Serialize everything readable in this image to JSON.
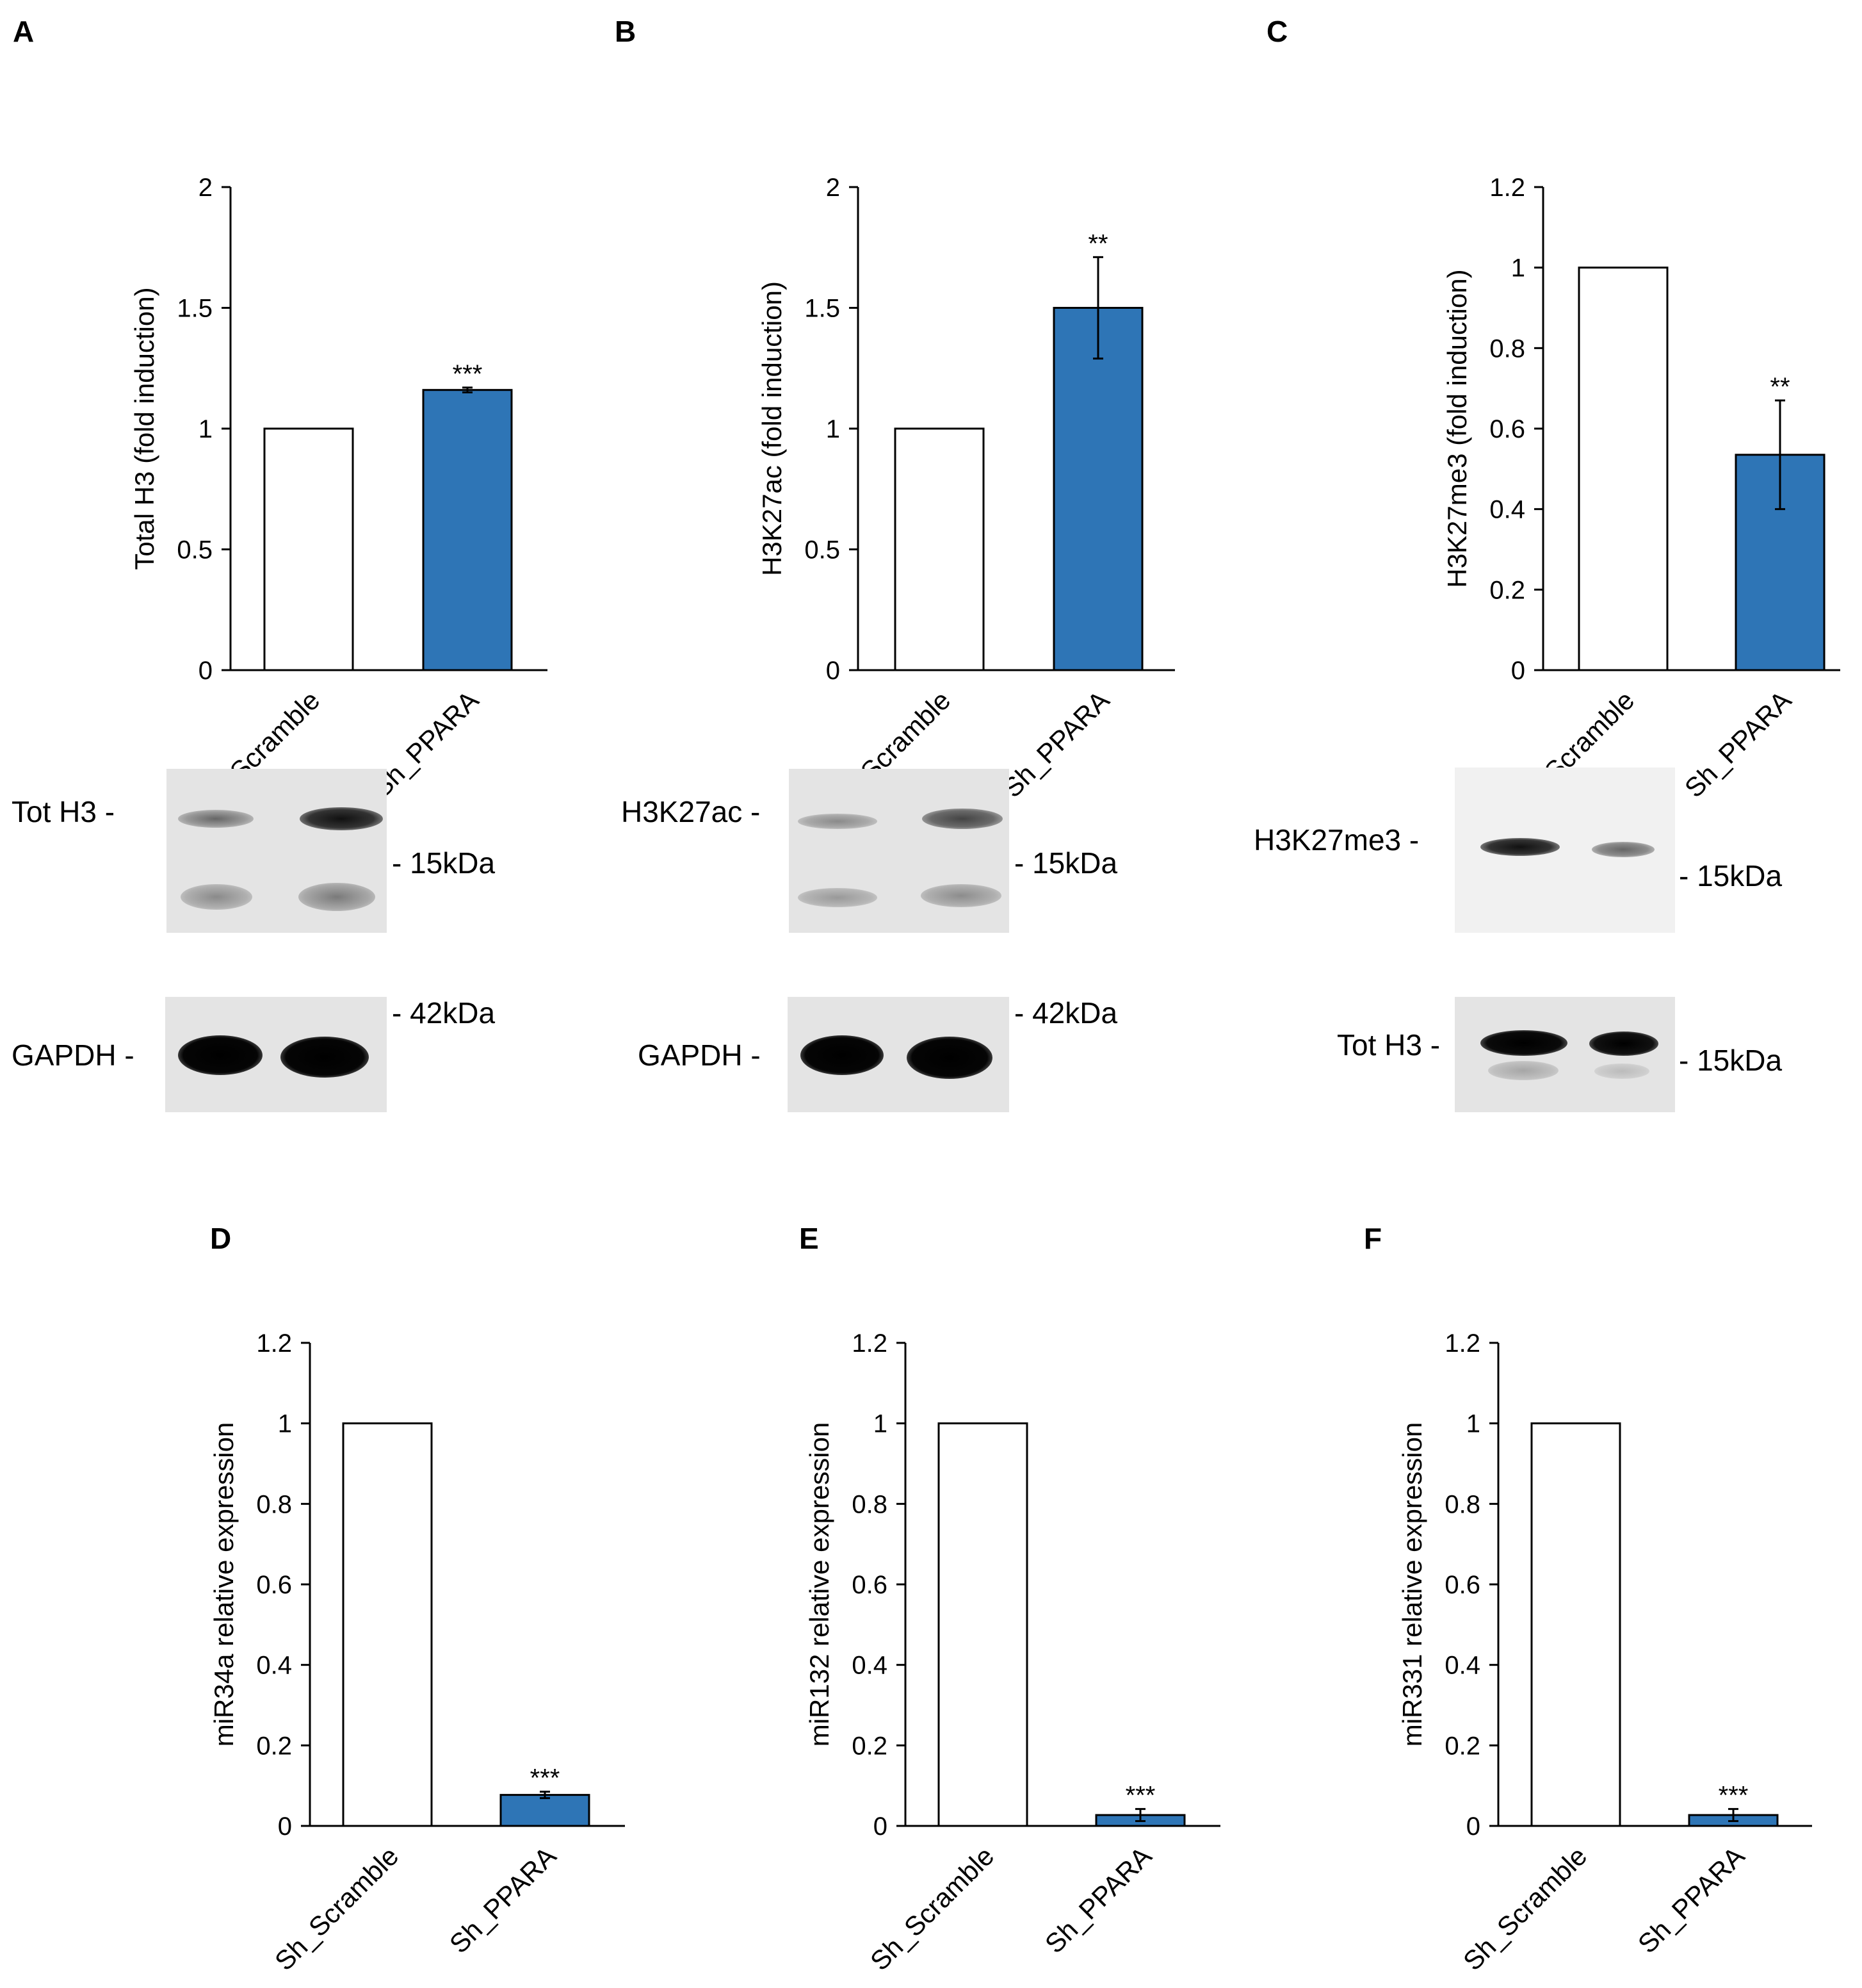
{
  "chart_data": [
    {
      "panel": "A",
      "type": "bar",
      "categories": [
        "Sh_Scramble",
        "Sh_PPARA"
      ],
      "values": [
        1.0,
        1.16
      ],
      "errors": [
        0,
        0.01
      ],
      "significance": [
        "",
        "***"
      ],
      "ylabel": "Total H3 (fold induction)",
      "ylim": [
        0,
        2
      ],
      "yticks": [
        0,
        0.5,
        1,
        1.5,
        2
      ],
      "ytick_labels": [
        "0",
        "0.5",
        "1",
        "1.5",
        "2"
      ],
      "colors": [
        "#ffffff",
        "#2e75b6"
      ]
    },
    {
      "panel": "B",
      "type": "bar",
      "categories": [
        "Sh_Scramble",
        "Sh_PPARA"
      ],
      "values": [
        1.0,
        1.5
      ],
      "errors": [
        0,
        0.21
      ],
      "significance": [
        "",
        "**"
      ],
      "ylabel": "H3K27ac (fold induction)",
      "ylim": [
        0,
        2
      ],
      "yticks": [
        0,
        0.5,
        1,
        1.5,
        2
      ],
      "ytick_labels": [
        "0",
        "0.5",
        "1",
        "1.5",
        "2"
      ],
      "colors": [
        "#ffffff",
        "#2e75b6"
      ]
    },
    {
      "panel": "C",
      "type": "bar",
      "categories": [
        "Sh_Scramble",
        "Sh_PPARA"
      ],
      "values": [
        1.0,
        0.535
      ],
      "errors": [
        0,
        0.135
      ],
      "significance": [
        "",
        "**"
      ],
      "ylabel": "H3K27me3 (fold induction)",
      "ylim": [
        0,
        1.2
      ],
      "yticks": [
        0,
        0.2,
        0.4,
        0.6,
        0.8,
        1,
        1.2
      ],
      "ytick_labels": [
        "0",
        "0.2",
        "0.4",
        "0.6",
        "0.8",
        "1",
        "1.2"
      ],
      "colors": [
        "#ffffff",
        "#2e75b6"
      ]
    },
    {
      "panel": "D",
      "type": "bar",
      "categories": [
        "Sh_Scramble",
        "Sh_PPARA"
      ],
      "values": [
        1.0,
        0.077
      ],
      "errors": [
        0,
        0.008
      ],
      "significance": [
        "",
        "***"
      ],
      "ylabel": "miR34a relative expression",
      "ylim": [
        0,
        1.2
      ],
      "yticks": [
        0,
        0.2,
        0.4,
        0.6,
        0.8,
        1,
        1.2
      ],
      "ytick_labels": [
        "0",
        "0.2",
        "0.4",
        "0.6",
        "0.8",
        "1",
        "1.2"
      ],
      "colors": [
        "#ffffff",
        "#2e75b6"
      ]
    },
    {
      "panel": "E",
      "type": "bar",
      "categories": [
        "Sh_Scramble",
        "Sh_PPARA"
      ],
      "values": [
        1.0,
        0.027
      ],
      "errors": [
        0,
        0.015
      ],
      "significance": [
        "",
        "***"
      ],
      "ylabel": "miR132 relative expression",
      "ylim": [
        0,
        1.2
      ],
      "yticks": [
        0,
        0.2,
        0.4,
        0.6,
        0.8,
        1,
        1.2
      ],
      "ytick_labels": [
        "0",
        "0.2",
        "0.4",
        "0.6",
        "0.8",
        "1",
        "1.2"
      ],
      "colors": [
        "#ffffff",
        "#2e75b6"
      ]
    },
    {
      "panel": "F",
      "type": "bar",
      "categories": [
        "Sh_Scramble",
        "Sh_PPARA"
      ],
      "values": [
        1.0,
        0.027
      ],
      "errors": [
        0,
        0.015
      ],
      "significance": [
        "",
        "***"
      ],
      "ylabel": "miR331 relative expression",
      "ylim": [
        0,
        1.2
      ],
      "yticks": [
        0,
        0.2,
        0.4,
        0.6,
        0.8,
        1,
        1.2
      ],
      "ytick_labels": [
        "0",
        "0.2",
        "0.4",
        "0.6",
        "0.8",
        "1",
        "1.2"
      ],
      "colors": [
        "#ffffff",
        "#2e75b6"
      ]
    }
  ],
  "panel_letters": {
    "A": "A",
    "B": "B",
    "C": "C",
    "D": "D",
    "E": "E",
    "F": "F"
  },
  "blots": {
    "A": {
      "top_label": "Tot H3 -",
      "top_marker": "- 15kDa",
      "bottom_label": "GAPDH -",
      "bottom_marker": "- 42kDa"
    },
    "B": {
      "top_label": "H3K27ac -",
      "top_marker": "- 15kDa",
      "bottom_label": "GAPDH -",
      "bottom_marker": "- 42kDa"
    },
    "C": {
      "top_label": "H3K27me3 -",
      "top_marker": "- 15kDa",
      "bottom_label": "Tot H3 -",
      "bottom_marker": "- 15kDa"
    }
  }
}
